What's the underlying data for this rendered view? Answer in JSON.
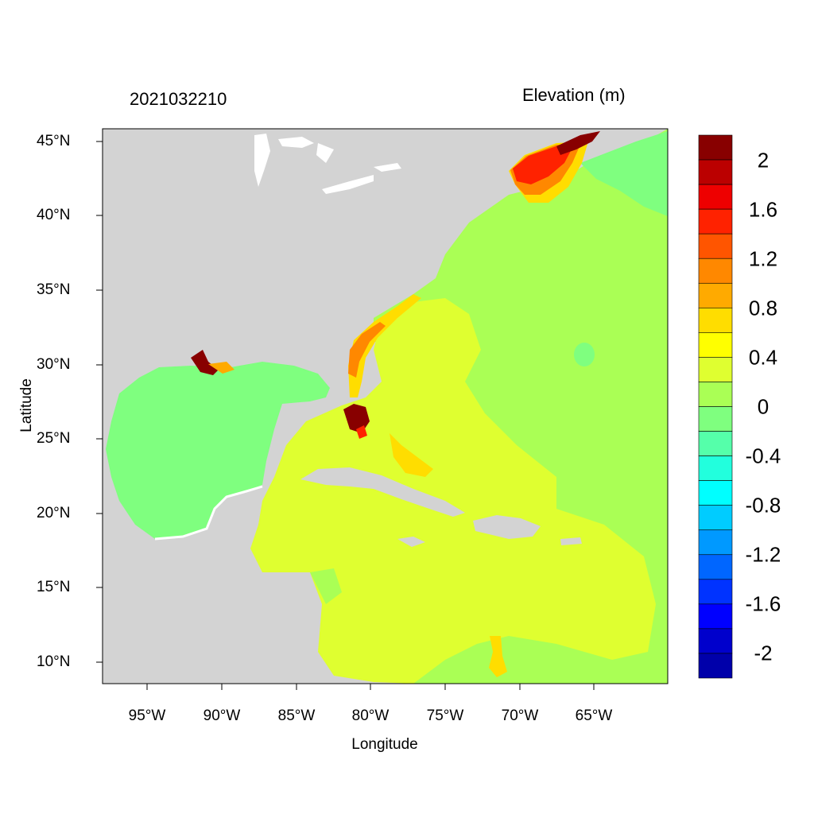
{
  "header": {
    "timestamp": "2021032210",
    "variable": "Elevation (m)"
  },
  "axes": {
    "xlabel": "Longitude",
    "ylabel": "Latitude",
    "x_ticks": [
      "95°W",
      "90°W",
      "85°W",
      "80°W",
      "75°W",
      "70°W",
      "65°W"
    ],
    "y_ticks": [
      "45°N",
      "40°N",
      "35°N",
      "30°N",
      "25°N",
      "20°N",
      "15°N",
      "10°N"
    ]
  },
  "legend": {
    "labels": [
      "2",
      "1.6",
      "1.2",
      "0.8",
      "0.4",
      "0",
      "-0.4",
      "-0.8",
      "-1.2",
      "-1.6",
      "-2"
    ],
    "colors": [
      "#880000",
      "#bb0000",
      "#ee0000",
      "#ff2200",
      "#ff5500",
      "#ff8800",
      "#ffaa00",
      "#ffdd00",
      "#ffff00",
      "#dfff30",
      "#aaff55",
      "#7fff7f",
      "#55ffaa",
      "#22ffdd",
      "#00ffff",
      "#00ccff",
      "#0099ff",
      "#0066ff",
      "#0033ff",
      "#0000ff",
      "#0000cc",
      "#0000aa"
    ]
  },
  "colors": {
    "land": "#d3d3d3",
    "gulf_water": "#7fff7f",
    "atlantic_water": "#aaff55",
    "caribbean_water": "#dfff30"
  }
}
